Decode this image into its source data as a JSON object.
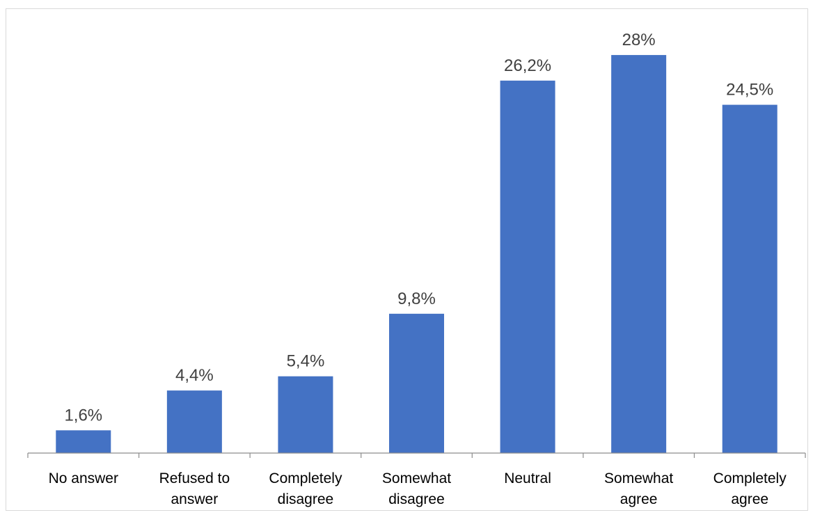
{
  "chart_data": {
    "type": "bar",
    "categories": [
      "No answer",
      "Refused to answer",
      "Completely disagree",
      "Somewhat disagree",
      "Neutral",
      "Somewhat agree",
      "Completely agree"
    ],
    "category_lines": [
      [
        "No answer"
      ],
      [
        "Refused to",
        "answer"
      ],
      [
        "Completely",
        "disagree"
      ],
      [
        "Somewhat",
        "disagree"
      ],
      [
        "Neutral"
      ],
      [
        "Somewhat",
        "agree"
      ],
      [
        "Completely",
        "agree"
      ]
    ],
    "values": [
      1.6,
      4.4,
      5.4,
      9.8,
      26.2,
      28,
      24.5
    ],
    "data_labels": [
      "1,6%",
      "4,4%",
      "5,4%",
      "9,8%",
      "26,2%",
      "28%",
      "24,5%"
    ],
    "title": "",
    "xlabel": "",
    "ylabel": "",
    "ylim": [
      0,
      30.5
    ],
    "grid": false,
    "legend": "none",
    "bar_color": "#4472C4"
  }
}
